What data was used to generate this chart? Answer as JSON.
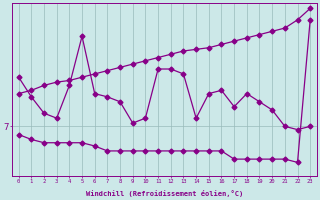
{
  "xlabel": "Windchill (Refroidissement éolien,°C)",
  "xlim": [
    -0.5,
    23.5
  ],
  "ylim": [
    4.0,
    14.5
  ],
  "ytick_values": [
    7
  ],
  "ytick_labels": [
    "7"
  ],
  "bg_color": "#cce8e8",
  "line_color": "#880088",
  "grid_color": "#99bbbb",
  "x": [
    0,
    1,
    2,
    3,
    4,
    5,
    6,
    7,
    8,
    9,
    10,
    11,
    12,
    13,
    14,
    15,
    16,
    17,
    18,
    19,
    20,
    21,
    22,
    23
  ],
  "line_top": [
    9.0,
    9.2,
    9.5,
    9.7,
    9.8,
    10.0,
    10.2,
    10.4,
    10.6,
    10.8,
    11.0,
    11.2,
    11.4,
    11.6,
    11.7,
    11.8,
    12.0,
    12.2,
    12.4,
    12.6,
    12.8,
    13.0,
    13.5,
    14.2
  ],
  "line_mid": [
    10.0,
    8.8,
    7.8,
    7.5,
    9.5,
    12.5,
    9.0,
    8.8,
    8.5,
    7.2,
    7.5,
    10.5,
    10.5,
    10.2,
    7.5,
    9.0,
    9.2,
    8.2,
    9.0,
    8.5,
    8.0,
    7.0,
    6.8,
    7.0
  ],
  "line_bot": [
    6.5,
    6.2,
    6.0,
    6.0,
    6.0,
    6.0,
    5.8,
    5.5,
    5.5,
    5.5,
    5.5,
    5.5,
    5.5,
    5.5,
    5.5,
    5.5,
    5.5,
    5.0,
    5.0,
    5.0,
    5.0,
    5.0,
    4.8,
    13.5
  ]
}
